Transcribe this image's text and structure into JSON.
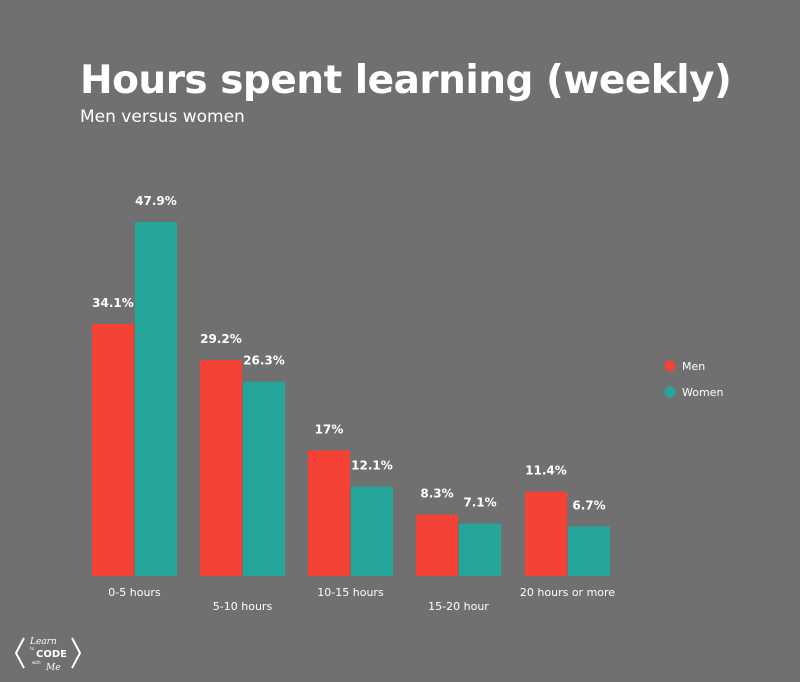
{
  "chart_data": {
    "type": "bar",
    "title": "Hours spent learning (weekly)",
    "subtitle": "Men versus women",
    "categories": [
      "0-5 hours",
      "5-10 hours",
      "10-15 hours",
      "15-20 hour",
      "20 hours or more"
    ],
    "series": [
      {
        "name": "Men",
        "color": "#f44336",
        "values": [
          34.1,
          29.2,
          17,
          8.3,
          11.4
        ],
        "labels": [
          "34.1%",
          "29.2%",
          "17%",
          "8.3%",
          "11.4%"
        ]
      },
      {
        "name": "Women",
        "color": "#26a69a",
        "values": [
          47.9,
          26.3,
          12.1,
          7.1,
          6.7
        ],
        "labels": [
          "47.9%",
          "26.3%",
          "12.1%",
          "7.1%",
          "6.7%"
        ]
      }
    ],
    "ylim": [
      0,
      47.9
    ],
    "grid": false,
    "legend": "right"
  },
  "logo": {
    "text": "Learn to CODE with Me"
  }
}
